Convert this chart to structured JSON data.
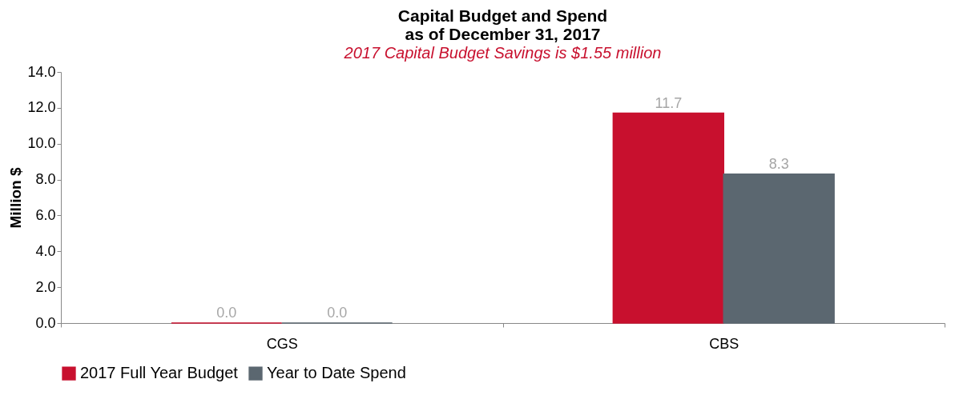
{
  "chart_data": {
    "type": "bar",
    "title": "Capital Budget and Spend\nas of December 31, 2017",
    "subtitle": "2017 Capital Budget Savings is $1.55 million",
    "ylabel": "Million $",
    "categories": [
      "CGS",
      "CBS"
    ],
    "series": [
      {
        "name": "2017 Full Year Budget",
        "color": "#c8102e",
        "values": [
          0,
          11.7
        ],
        "value_labels": [
          "0.0",
          "11.7"
        ]
      },
      {
        "name": "Year to Date Spend",
        "color": "#5b6770",
        "values": [
          0,
          8.3
        ],
        "value_labels": [
          "0.0",
          "8.3"
        ]
      }
    ],
    "ylim": [
      0,
      14
    ],
    "yticks": [
      {
        "value": 0,
        "label": "0.0"
      },
      {
        "value": 2,
        "label": "2.0"
      },
      {
        "value": 4,
        "label": "4.0"
      },
      {
        "value": 6,
        "label": "6.0"
      },
      {
        "value": 8,
        "label": "8.0"
      },
      {
        "value": 10,
        "label": "10.0"
      },
      {
        "value": 12,
        "label": "12.0"
      },
      {
        "value": 14,
        "label": "14.0"
      }
    ],
    "grid": false,
    "legend": "bottom"
  }
}
